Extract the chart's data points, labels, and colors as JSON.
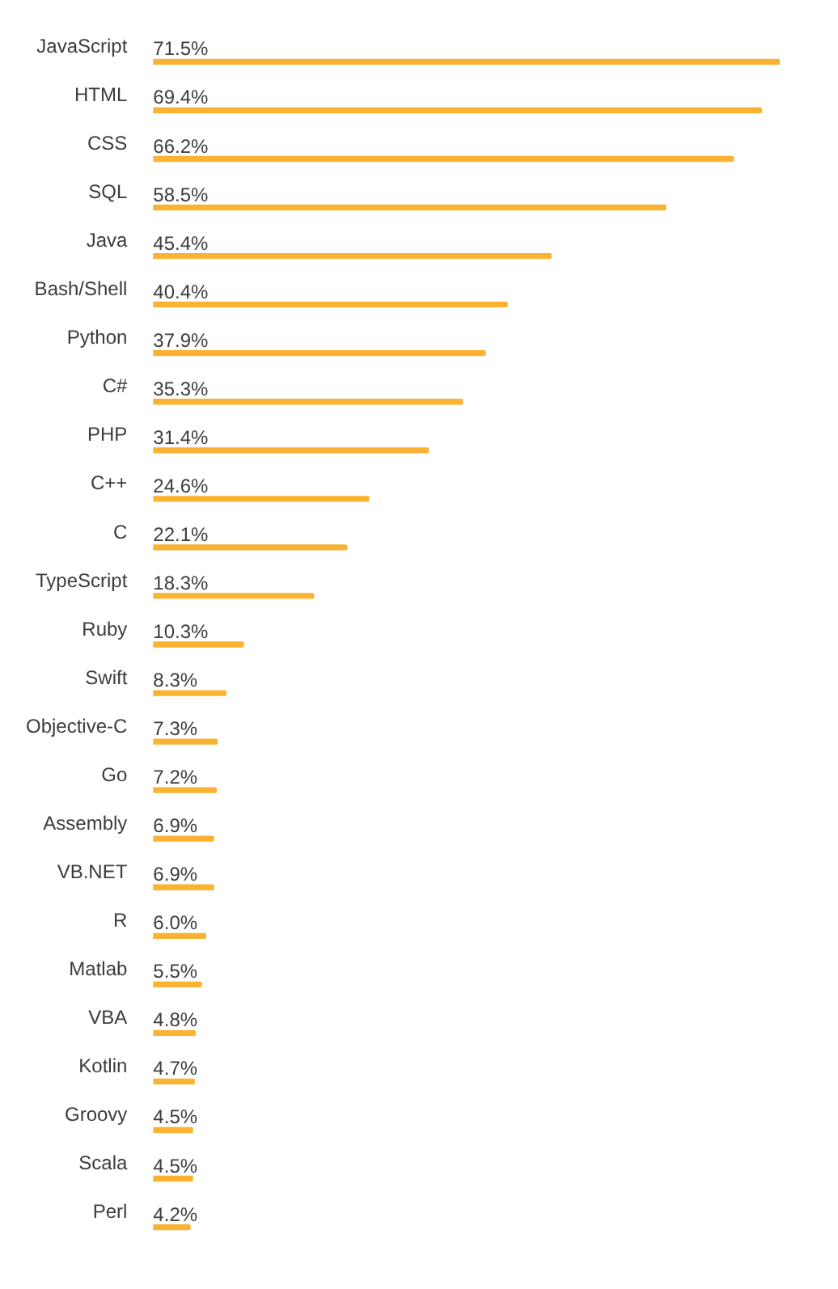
{
  "chart_data": {
    "type": "bar",
    "orientation": "horizontal",
    "categories": [
      "JavaScript",
      "HTML",
      "CSS",
      "SQL",
      "Java",
      "Bash/Shell",
      "Python",
      "C#",
      "PHP",
      "C++",
      "C",
      "TypeScript",
      "Ruby",
      "Swift",
      "Objective-C",
      "Go",
      "Assembly",
      "VB.NET",
      "R",
      "Matlab",
      "VBA",
      "Kotlin",
      "Groovy",
      "Scala",
      "Perl"
    ],
    "values": [
      71.5,
      69.4,
      66.2,
      58.5,
      45.4,
      40.4,
      37.9,
      35.3,
      31.4,
      24.6,
      22.1,
      18.3,
      10.3,
      8.3,
      7.3,
      7.2,
      6.9,
      6.9,
      6.0,
      5.5,
      4.8,
      4.7,
      4.5,
      4.5,
      4.2
    ],
    "value_labels": [
      "71.5%",
      "69.4%",
      "66.2%",
      "58.5%",
      "45.4%",
      "40.4%",
      "37.9%",
      "35.3%",
      "31.4%",
      "24.6%",
      "22.1%",
      "18.3%",
      "10.3%",
      "8.3%",
      "7.3%",
      "7.2%",
      "6.9%",
      "6.9%",
      "6.0%",
      "5.5%",
      "4.8%",
      "4.7%",
      "4.5%",
      "4.5%",
      "4.2%"
    ],
    "color": "#f9b232",
    "grid": false,
    "legend": false,
    "tick_labels": "y"
  }
}
